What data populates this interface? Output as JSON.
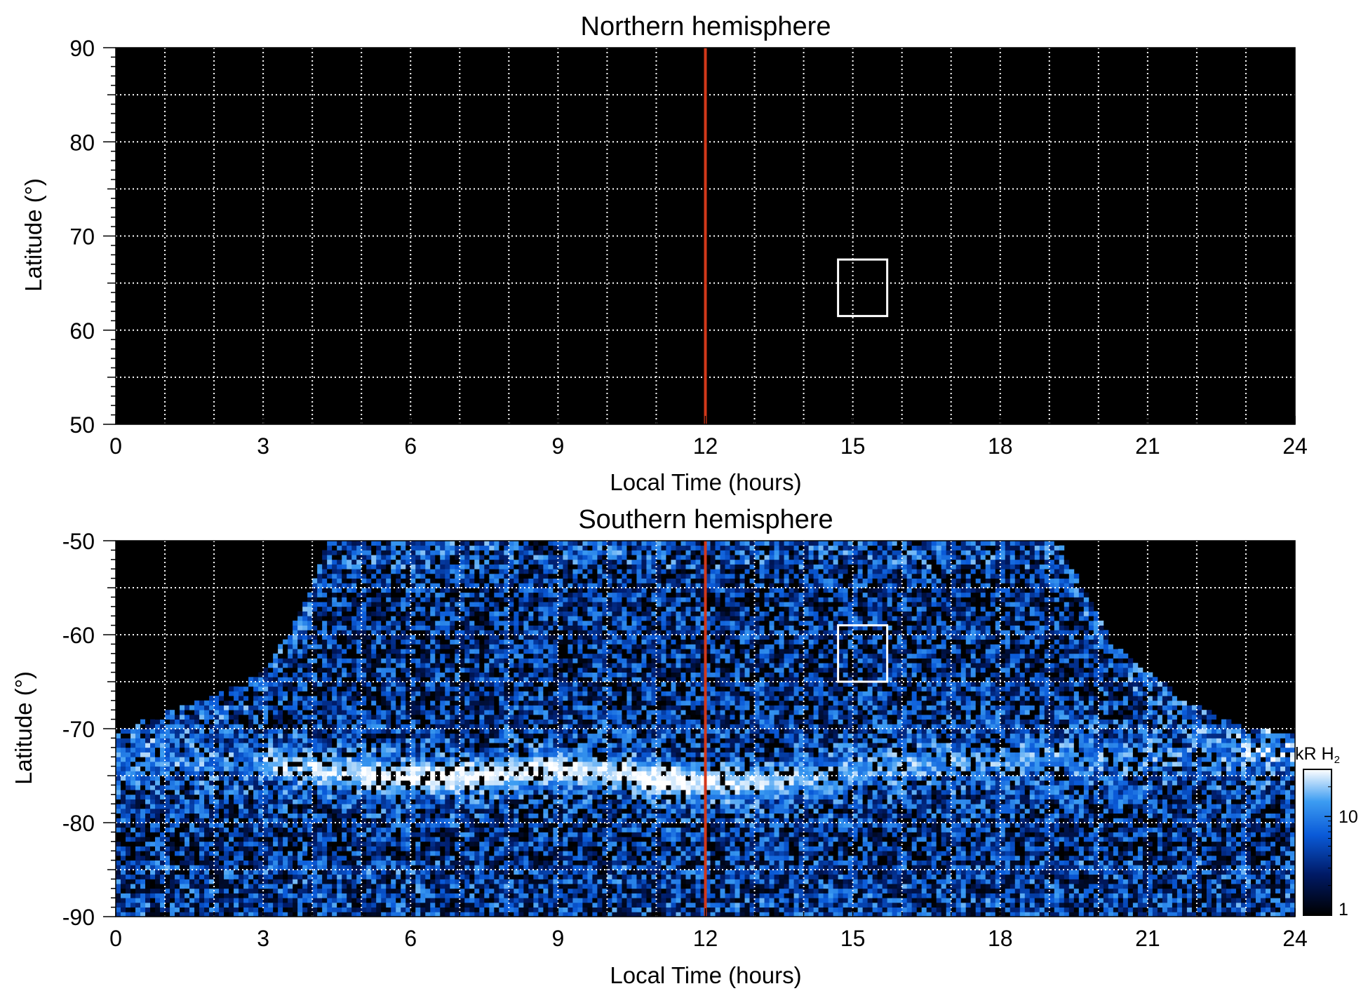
{
  "colors": {
    "background": "#000000",
    "grid": "#ffffff",
    "noon_line": "#d2381a",
    "box": "#ffffff",
    "colormap": [
      "#000000",
      "#001a66",
      "#0a5ad8",
      "#3c9cf2",
      "#ffffff"
    ]
  },
  "colorbar": {
    "label_main": "kR H",
    "label_sub": "2",
    "ticks": [
      "1",
      "10"
    ],
    "tick_values": [
      1,
      10
    ],
    "range": [
      1,
      30
    ],
    "scale": "log"
  },
  "chart_data": [
    {
      "type": "heatmap",
      "title": "Northern hemisphere",
      "xlabel": "Local Time (hours)",
      "ylabel": "Latitude (°)",
      "xlim": [
        0,
        24
      ],
      "ylim": [
        50,
        90
      ],
      "xticks": [
        0,
        3,
        6,
        9,
        12,
        15,
        18,
        21,
        24
      ],
      "xtick_labels": [
        "0",
        "3",
        "6",
        "9",
        "12",
        "15",
        "18",
        "21",
        "24"
      ],
      "yticks": [
        50,
        60,
        70,
        80,
        90
      ],
      "ytick_labels": [
        "50",
        "60",
        "70",
        "80",
        "90"
      ],
      "grid": true,
      "noon_line_x": 12,
      "box": {
        "x": [
          14.7,
          15.7
        ],
        "y": [
          61.5,
          67.5
        ]
      },
      "coverage": "none",
      "emission": []
    },
    {
      "type": "heatmap",
      "title": "Southern hemisphere",
      "xlabel": "Local Time (hours)",
      "ylabel": "Latitude (°)",
      "xlim": [
        0,
        24
      ],
      "ylim": [
        -90,
        -50
      ],
      "xticks": [
        0,
        3,
        6,
        9,
        12,
        15,
        18,
        21,
        24
      ],
      "xtick_labels": [
        "0",
        "3",
        "6",
        "9",
        "12",
        "15",
        "18",
        "21",
        "24"
      ],
      "yticks": [
        -90,
        -80,
        -70,
        -60,
        -50
      ],
      "ytick_labels": [
        "-90",
        "-80",
        "-70",
        "-60",
        "-50"
      ],
      "grid": true,
      "noon_line_x": 12,
      "box": {
        "x": [
          14.7,
          15.7
        ],
        "y": [
          -65,
          -59
        ]
      },
      "coverage": "dome",
      "coverage_edge": {
        "lt": [
          0,
          1,
          2,
          3,
          3.5,
          4,
          4.3,
          19.2,
          19.7,
          20.2,
          21,
          22,
          23,
          24
        ],
        "lat": [
          -70.5,
          -68.2,
          -66.5,
          -64,
          -60,
          -55,
          -50,
          -50,
          -55,
          -60,
          -64,
          -67.5,
          -70,
          -70.5
        ]
      },
      "emission": [
        {
          "lt": 3.0,
          "lat": -73.5,
          "kR": 12
        },
        {
          "lt": 4.0,
          "lat": -74.2,
          "kR": 15
        },
        {
          "lt": 5.0,
          "lat": -74.9,
          "kR": 20
        },
        {
          "lt": 6.0,
          "lat": -75.2,
          "kR": 25
        },
        {
          "lt": 7.0,
          "lat": -75.1,
          "kR": 25
        },
        {
          "lt": 8.0,
          "lat": -74.7,
          "kR": 22
        },
        {
          "lt": 9.0,
          "lat": -74.2,
          "kR": 25
        },
        {
          "lt": 10.0,
          "lat": -74.6,
          "kR": 18
        },
        {
          "lt": 11.0,
          "lat": -75.3,
          "kR": 28
        },
        {
          "lt": 12.0,
          "lat": -75.8,
          "kR": 22
        },
        {
          "lt": 13.0,
          "lat": -75.8,
          "kR": 16
        },
        {
          "lt": 14.0,
          "lat": -75.2,
          "kR": 10
        },
        {
          "lt": 15.0,
          "lat": -74.6,
          "kR": 8
        },
        {
          "lt": 16.0,
          "lat": -74.0,
          "kR": 7
        },
        {
          "lt": 17.0,
          "lat": -73.5,
          "kR": 6
        },
        {
          "lt": 18.0,
          "lat": -73.2,
          "kR": 7
        },
        {
          "lt": 19.0,
          "lat": -73.0,
          "kR": 6
        },
        {
          "lt": 20.0,
          "lat": -73.2,
          "kR": 5
        }
      ]
    }
  ]
}
